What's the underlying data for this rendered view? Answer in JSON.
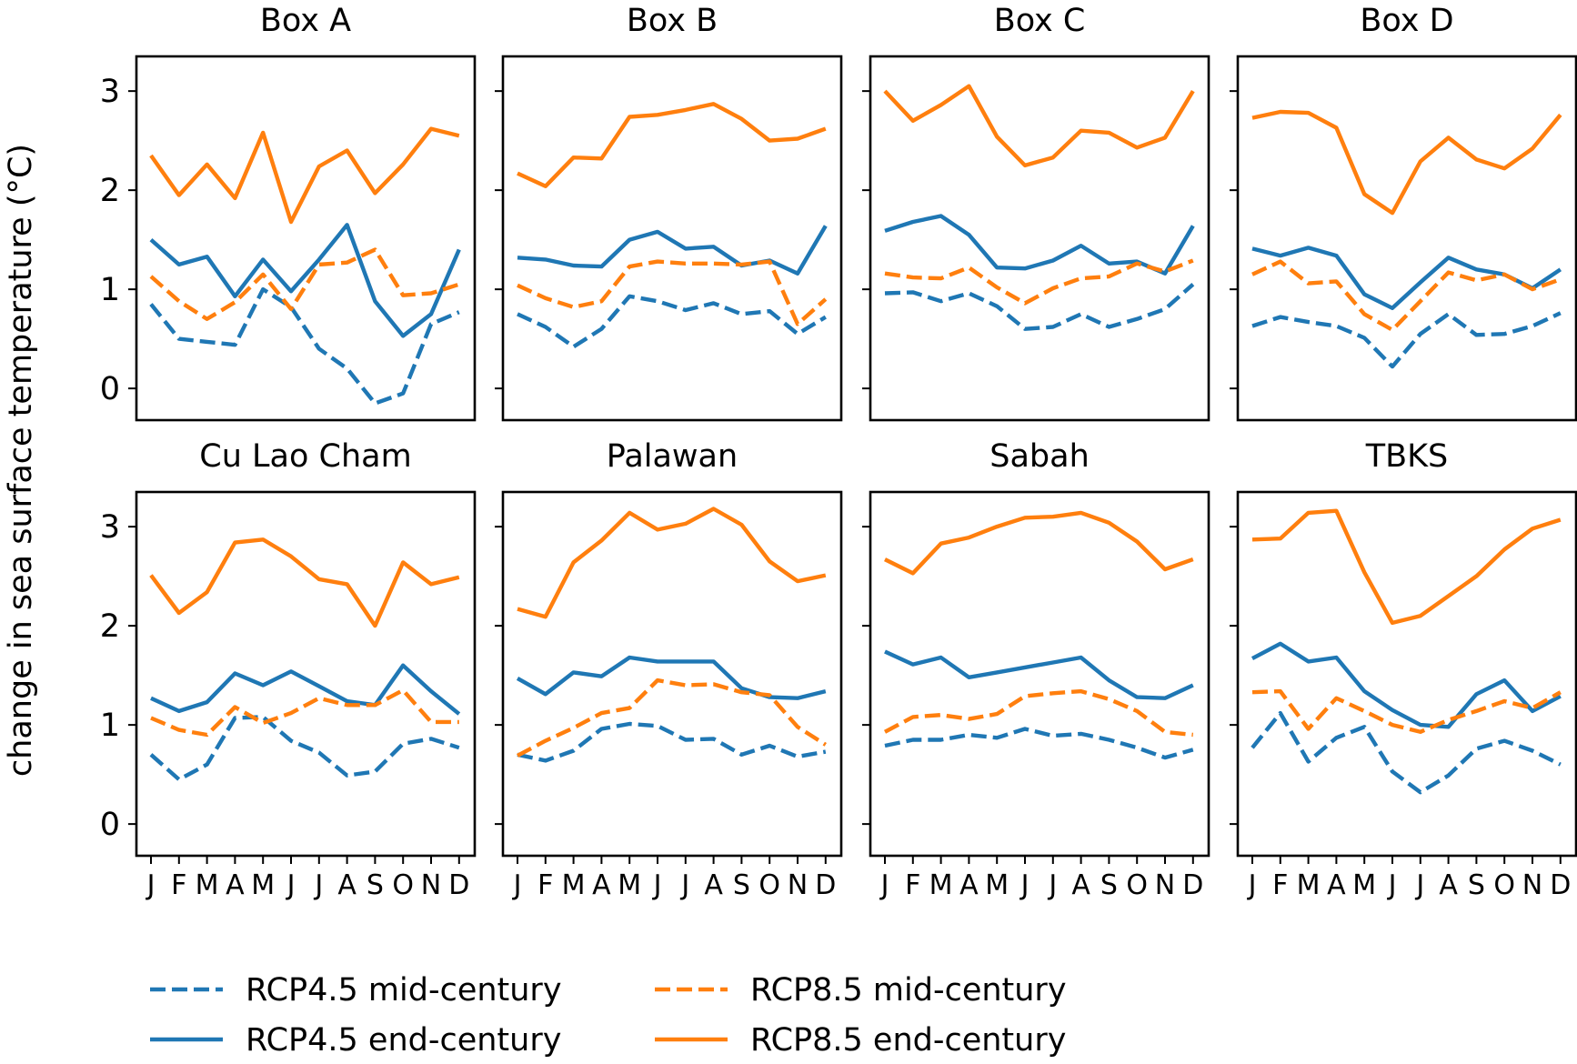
{
  "chart_data": {
    "type": "line",
    "ylabel": "change in sea surface temperature (°C)",
    "ylim": [
      -0.32,
      3.35
    ],
    "yticks": [
      0,
      1,
      2,
      3
    ],
    "months": [
      "J",
      "F",
      "M",
      "A",
      "M",
      "J",
      "J",
      "A",
      "S",
      "O",
      "N",
      "D"
    ],
    "series_meta": [
      {
        "key": "rcp45_mid",
        "name": "RCP4.5 mid-century",
        "color": "#1f77b4",
        "dashed": true
      },
      {
        "key": "rcp45_end",
        "name": "RCP4.5 end-century",
        "color": "#1f77b4",
        "dashed": false
      },
      {
        "key": "rcp85_mid",
        "name": "RCP8.5 mid-century",
        "color": "#ff7f0e",
        "dashed": true
      },
      {
        "key": "rcp85_end",
        "name": "RCP8.5 end-century",
        "color": "#ff7f0e",
        "dashed": false
      }
    ],
    "panels": [
      {
        "title": "Box A",
        "series": {
          "rcp45_mid": [
            0.85,
            0.5,
            0.47,
            0.44,
            1.0,
            0.82,
            0.4,
            0.2,
            -0.15,
            -0.05,
            0.65,
            0.77
          ],
          "rcp45_end": [
            1.5,
            1.25,
            1.33,
            0.93,
            1.3,
            0.98,
            1.3,
            1.65,
            0.88,
            0.53,
            0.75,
            1.4
          ],
          "rcp85_mid": [
            1.13,
            0.88,
            0.7,
            0.87,
            1.15,
            0.8,
            1.25,
            1.27,
            1.4,
            0.94,
            0.96,
            1.05
          ],
          "rcp85_end": [
            2.35,
            1.95,
            2.26,
            1.92,
            2.58,
            1.68,
            2.24,
            2.4,
            1.97,
            2.26,
            2.62,
            2.55
          ]
        }
      },
      {
        "title": "Box B",
        "series": {
          "rcp45_mid": [
            0.75,
            0.62,
            0.42,
            0.6,
            0.93,
            0.88,
            0.79,
            0.86,
            0.75,
            0.78,
            0.55,
            0.72
          ],
          "rcp45_end": [
            1.32,
            1.3,
            1.24,
            1.23,
            1.5,
            1.58,
            1.41,
            1.43,
            1.24,
            1.29,
            1.16,
            1.64
          ],
          "rcp85_mid": [
            1.04,
            0.91,
            0.82,
            0.88,
            1.23,
            1.28,
            1.26,
            1.26,
            1.25,
            1.28,
            0.65,
            0.9
          ],
          "rcp85_end": [
            2.17,
            2.04,
            2.33,
            2.32,
            2.74,
            2.76,
            2.81,
            2.87,
            2.72,
            2.5,
            2.52,
            2.62
          ]
        }
      },
      {
        "title": "Box C",
        "series": {
          "rcp45_mid": [
            0.96,
            0.97,
            0.88,
            0.96,
            0.83,
            0.6,
            0.62,
            0.75,
            0.62,
            0.7,
            0.8,
            1.05
          ],
          "rcp45_end": [
            1.59,
            1.68,
            1.74,
            1.55,
            1.22,
            1.21,
            1.29,
            1.44,
            1.26,
            1.28,
            1.16,
            1.64
          ],
          "rcp85_mid": [
            1.16,
            1.12,
            1.11,
            1.22,
            1.02,
            0.86,
            1.01,
            1.11,
            1.13,
            1.26,
            1.18,
            1.29
          ],
          "rcp85_end": [
            3.0,
            2.7,
            2.86,
            3.05,
            2.54,
            2.25,
            2.33,
            2.6,
            2.58,
            2.43,
            2.53,
            3.0
          ]
        }
      },
      {
        "title": "Box D",
        "series": {
          "rcp45_mid": [
            0.63,
            0.72,
            0.67,
            0.63,
            0.51,
            0.22,
            0.55,
            0.75,
            0.54,
            0.55,
            0.63,
            0.76
          ],
          "rcp45_end": [
            1.41,
            1.34,
            1.42,
            1.34,
            0.95,
            0.81,
            1.07,
            1.32,
            1.2,
            1.15,
            1.01,
            1.2
          ],
          "rcp85_mid": [
            1.15,
            1.28,
            1.06,
            1.08,
            0.75,
            0.59,
            0.88,
            1.17,
            1.09,
            1.15,
            1.0,
            1.1
          ],
          "rcp85_end": [
            2.73,
            2.79,
            2.78,
            2.63,
            1.96,
            1.77,
            2.29,
            2.53,
            2.31,
            2.22,
            2.42,
            2.76
          ]
        }
      },
      {
        "title": "Cu Lao Cham",
        "series": {
          "rcp45_mid": [
            0.7,
            0.45,
            0.6,
            1.07,
            1.08,
            0.84,
            0.72,
            0.49,
            0.53,
            0.81,
            0.86,
            0.77
          ],
          "rcp45_end": [
            1.27,
            1.14,
            1.23,
            1.52,
            1.4,
            1.54,
            1.39,
            1.24,
            1.2,
            1.6,
            1.34,
            1.11
          ],
          "rcp85_mid": [
            1.07,
            0.95,
            0.9,
            1.18,
            1.02,
            1.12,
            1.27,
            1.2,
            1.2,
            1.35,
            1.03,
            1.03
          ],
          "rcp85_end": [
            2.51,
            2.13,
            2.34,
            2.84,
            2.87,
            2.7,
            2.47,
            2.42,
            2.0,
            2.64,
            2.42,
            2.49
          ]
        }
      },
      {
        "title": "Palawan",
        "series": {
          "rcp45_mid": [
            0.7,
            0.64,
            0.74,
            0.96,
            1.01,
            0.99,
            0.85,
            0.86,
            0.7,
            0.79,
            0.68,
            0.73
          ],
          "rcp45_end": [
            1.47,
            1.31,
            1.53,
            1.49,
            1.68,
            1.64,
            1.64,
            1.64,
            1.37,
            1.28,
            1.27,
            1.34
          ],
          "rcp85_mid": [
            0.69,
            0.84,
            0.97,
            1.12,
            1.17,
            1.45,
            1.4,
            1.41,
            1.33,
            1.3,
            0.98,
            0.8
          ],
          "rcp85_end": [
            2.17,
            2.09,
            2.64,
            2.86,
            3.14,
            2.97,
            3.03,
            3.18,
            3.02,
            2.65,
            2.45,
            2.51
          ]
        }
      },
      {
        "title": "Sabah",
        "series": {
          "rcp45_mid": [
            0.79,
            0.85,
            0.85,
            0.9,
            0.87,
            0.96,
            0.89,
            0.91,
            0.85,
            0.77,
            0.67,
            0.75
          ],
          "rcp45_end": [
            1.74,
            1.61,
            1.68,
            1.48,
            1.53,
            1.58,
            1.63,
            1.68,
            1.45,
            1.28,
            1.27,
            1.4
          ],
          "rcp85_mid": [
            0.93,
            1.08,
            1.1,
            1.06,
            1.11,
            1.29,
            1.32,
            1.34,
            1.26,
            1.14,
            0.93,
            0.9
          ],
          "rcp85_end": [
            2.67,
            2.53,
            2.83,
            2.89,
            3.0,
            3.09,
            3.1,
            3.14,
            3.04,
            2.85,
            2.57,
            2.67
          ]
        }
      },
      {
        "title": "TBKS",
        "series": {
          "rcp45_mid": [
            0.77,
            1.12,
            0.63,
            0.87,
            0.98,
            0.53,
            0.32,
            0.49,
            0.76,
            0.84,
            0.74,
            0.6
          ],
          "rcp45_end": [
            1.67,
            1.82,
            1.64,
            1.68,
            1.34,
            1.15,
            1.0,
            0.98,
            1.31,
            1.45,
            1.14,
            1.29
          ],
          "rcp85_mid": [
            1.33,
            1.34,
            0.96,
            1.27,
            1.14,
            1.0,
            0.93,
            1.05,
            1.14,
            1.24,
            1.17,
            1.33
          ],
          "rcp85_end": [
            2.87,
            2.88,
            3.14,
            3.16,
            2.54,
            2.03,
            2.1,
            2.3,
            2.5,
            2.77,
            2.98,
            3.07
          ]
        }
      }
    ]
  }
}
